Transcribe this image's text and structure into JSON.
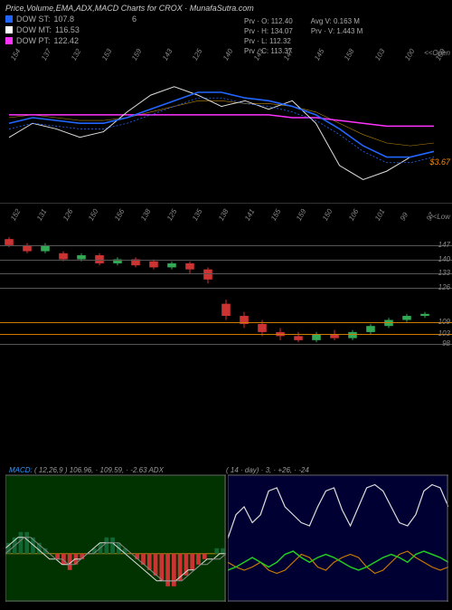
{
  "title": "Price,Volume,EMA,ADX,MACD Charts for CROX · MunafaSutra.com",
  "legend": {
    "st": {
      "label": "DOW ST:",
      "value": "107.8",
      "extra": "6",
      "color": "#2266ff"
    },
    "mt": {
      "label": "DOW MT:",
      "value": "116.53",
      "color": "#ffffff"
    },
    "pt": {
      "label": "DOW PT:",
      "value": "122.42",
      "color": "#ff33ff"
    }
  },
  "stats": {
    "o": "Prv · O: 112.40",
    "avgv": "Avg V: 0.163 M",
    "h": "Prv · H: 134.07",
    "prv": "Prv · V: 1.443 M",
    "l": "Prv · L: 112.32",
    "c": "Prv · C: 113.37"
  },
  "price_panel": {
    "x_labels": [
      "154",
      "137",
      "132",
      "153",
      "159",
      "143",
      "125",
      "140",
      "143",
      "147",
      "145",
      "158",
      "103",
      "100",
      "109"
    ],
    "axis_right_title": "<<Open",
    "last_label": "$3.67",
    "colors": {
      "blue": "#2266ff",
      "white": "#dddddd",
      "magenta": "#ff33ff",
      "thin1": "#b8860b",
      "thin2": "#888888"
    },
    "blue": [
      120,
      122,
      121,
      120,
      120,
      122,
      125,
      128,
      131,
      131,
      129,
      128,
      126,
      123,
      118,
      112,
      108,
      108,
      110
    ],
    "white": [
      115,
      120,
      118,
      115,
      117,
      124,
      130,
      133,
      130,
      126,
      128,
      125,
      128,
      120,
      105,
      100,
      103,
      108,
      110
    ],
    "magenta": [
      123,
      123,
      123,
      123,
      123,
      123,
      123,
      123,
      123,
      123,
      123,
      123,
      122,
      122,
      121,
      120,
      119,
      119,
      119
    ],
    "thin": [
      122,
      123,
      122,
      121,
      121,
      122,
      124,
      126,
      128,
      128,
      127,
      127,
      126,
      124,
      120,
      116,
      113,
      112,
      113
    ],
    "ylim": [
      95,
      140
    ]
  },
  "candle_panel": {
    "x_labels": [
      "152",
      "131",
      "126",
      "150",
      "156",
      "138",
      "125",
      "135",
      "138",
      "141",
      "155",
      "159",
      "150",
      "106",
      "101",
      "99",
      "97"
    ],
    "y_labels": [
      "147",
      "140",
      "133",
      "126",
      "109",
      "103",
      "98"
    ],
    "axis_right_title": "<<Low",
    "hlines": [
      "147",
      "140",
      "133",
      "126",
      "109",
      "103",
      "98"
    ],
    "hline_color": "#555555",
    "orange_hlines": [
      "109",
      "103"
    ],
    "orange": "#cc7a00",
    "candles": [
      {
        "x": 0,
        "o": 150,
        "c": 147,
        "h": 151,
        "l": 146,
        "col": "r"
      },
      {
        "x": 1,
        "o": 147,
        "c": 144,
        "h": 148,
        "l": 143,
        "col": "r"
      },
      {
        "x": 2,
        "o": 144,
        "c": 147,
        "h": 148,
        "l": 143,
        "col": "g"
      },
      {
        "x": 3,
        "o": 143,
        "c": 140,
        "h": 144,
        "l": 139,
        "col": "r"
      },
      {
        "x": 4,
        "o": 140,
        "c": 142,
        "h": 143,
        "l": 139,
        "col": "g"
      },
      {
        "x": 5,
        "o": 142,
        "c": 138,
        "h": 143,
        "l": 137,
        "col": "r"
      },
      {
        "x": 6,
        "o": 138,
        "c": 140,
        "h": 141,
        "l": 137,
        "col": "g"
      },
      {
        "x": 7,
        "o": 140,
        "c": 137,
        "h": 141,
        "l": 136,
        "col": "r"
      },
      {
        "x": 8,
        "o": 139,
        "c": 136,
        "h": 140,
        "l": 135,
        "col": "r"
      },
      {
        "x": 9,
        "o": 136,
        "c": 138,
        "h": 139,
        "l": 135,
        "col": "g"
      },
      {
        "x": 10,
        "o": 138,
        "c": 135,
        "h": 139,
        "l": 133,
        "col": "r"
      },
      {
        "x": 11,
        "o": 135,
        "c": 130,
        "h": 136,
        "l": 128,
        "col": "r"
      },
      {
        "x": 12,
        "o": 118,
        "c": 112,
        "h": 120,
        "l": 110,
        "col": "r"
      },
      {
        "x": 13,
        "o": 112,
        "c": 108,
        "h": 114,
        "l": 106,
        "col": "r"
      },
      {
        "x": 14,
        "o": 108,
        "c": 104,
        "h": 110,
        "l": 102,
        "col": "r"
      },
      {
        "x": 15,
        "o": 104,
        "c": 102,
        "h": 106,
        "l": 100,
        "col": "r"
      },
      {
        "x": 16,
        "o": 102,
        "c": 100,
        "h": 104,
        "l": 99,
        "col": "r"
      },
      {
        "x": 17,
        "o": 100,
        "c": 103,
        "h": 104,
        "l": 99,
        "col": "g"
      },
      {
        "x": 18,
        "o": 103,
        "c": 101,
        "h": 105,
        "l": 100,
        "col": "r"
      },
      {
        "x": 19,
        "o": 101,
        "c": 104,
        "h": 105,
        "l": 100,
        "col": "g"
      },
      {
        "x": 20,
        "o": 104,
        "c": 107,
        "h": 108,
        "l": 103,
        "col": "g"
      },
      {
        "x": 21,
        "o": 107,
        "c": 110,
        "h": 111,
        "l": 106,
        "col": "g"
      },
      {
        "x": 22,
        "o": 110,
        "c": 112,
        "h": 113,
        "l": 109,
        "col": "g"
      },
      {
        "x": 23,
        "o": 112,
        "c": 113,
        "h": 114,
        "l": 111,
        "col": "g"
      }
    ],
    "ylim": [
      95,
      155
    ],
    "red": "#cc3333",
    "green": "#33aa55",
    "blue": "#3355dd"
  },
  "macd_panel": {
    "title": "MACD:",
    "subtitle": "( 12,26,9 ) 106.96, · 109.59, · -2.63 ADX",
    "bg": "#003300",
    "zero_color": "#b8860b",
    "hist": [
      2,
      3,
      4,
      4,
      3,
      2,
      1,
      0,
      -1,
      -2,
      -3,
      -2,
      -1,
      0,
      1,
      2,
      3,
      3,
      2,
      1,
      0,
      -1,
      -2,
      -3,
      -4,
      -5,
      -6,
      -6,
      -5,
      -4,
      -3,
      -2,
      -1,
      0,
      1,
      1
    ],
    "line1": [
      1,
      2,
      3,
      3,
      2,
      1,
      0,
      -1,
      -1,
      -2,
      -2,
      -1,
      -1,
      0,
      1,
      2,
      2,
      2,
      1,
      0,
      -1,
      -2,
      -3,
      -4,
      -5,
      -5,
      -5,
      -5,
      -4,
      -3,
      -3,
      -2,
      -1,
      -1,
      0,
      0
    ],
    "line2": [
      0,
      1,
      2,
      3,
      3,
      2,
      1,
      0,
      -1,
      -1,
      -2,
      -2,
      -1,
      0,
      0,
      1,
      2,
      2,
      2,
      1,
      0,
      -1,
      -2,
      -3,
      -4,
      -5,
      -5,
      -5,
      -5,
      -4,
      -3,
      -2,
      -2,
      -1,
      -1,
      0
    ],
    "pos_color": "#116633",
    "neg_color": "#cc3333",
    "line1_color": "#dddddd",
    "line2_color": "#888888"
  },
  "adx_panel": {
    "subtitle": "( 14 · day) · 3, · +26, · -24",
    "bg": "#000033",
    "white": [
      40,
      55,
      60,
      50,
      55,
      70,
      72,
      60,
      55,
      50,
      48,
      60,
      70,
      72,
      58,
      48,
      60,
      72,
      74,
      70,
      60,
      50,
      48,
      55,
      70,
      74,
      72,
      60
    ],
    "orange": [
      25,
      22,
      20,
      22,
      25,
      20,
      18,
      20,
      25,
      30,
      28,
      22,
      20,
      25,
      28,
      30,
      28,
      22,
      18,
      20,
      25,
      30,
      32,
      28,
      25,
      22,
      20,
      22
    ],
    "green": [
      20,
      22,
      25,
      28,
      25,
      22,
      25,
      30,
      32,
      28,
      25,
      28,
      30,
      28,
      25,
      22,
      20,
      22,
      25,
      28,
      30,
      28,
      25,
      30,
      32,
      30,
      28,
      25
    ],
    "ylim": [
      0,
      80
    ],
    "white_color": "#dddddd",
    "orange_color": "#cc7a00",
    "green_color": "#22cc22"
  }
}
